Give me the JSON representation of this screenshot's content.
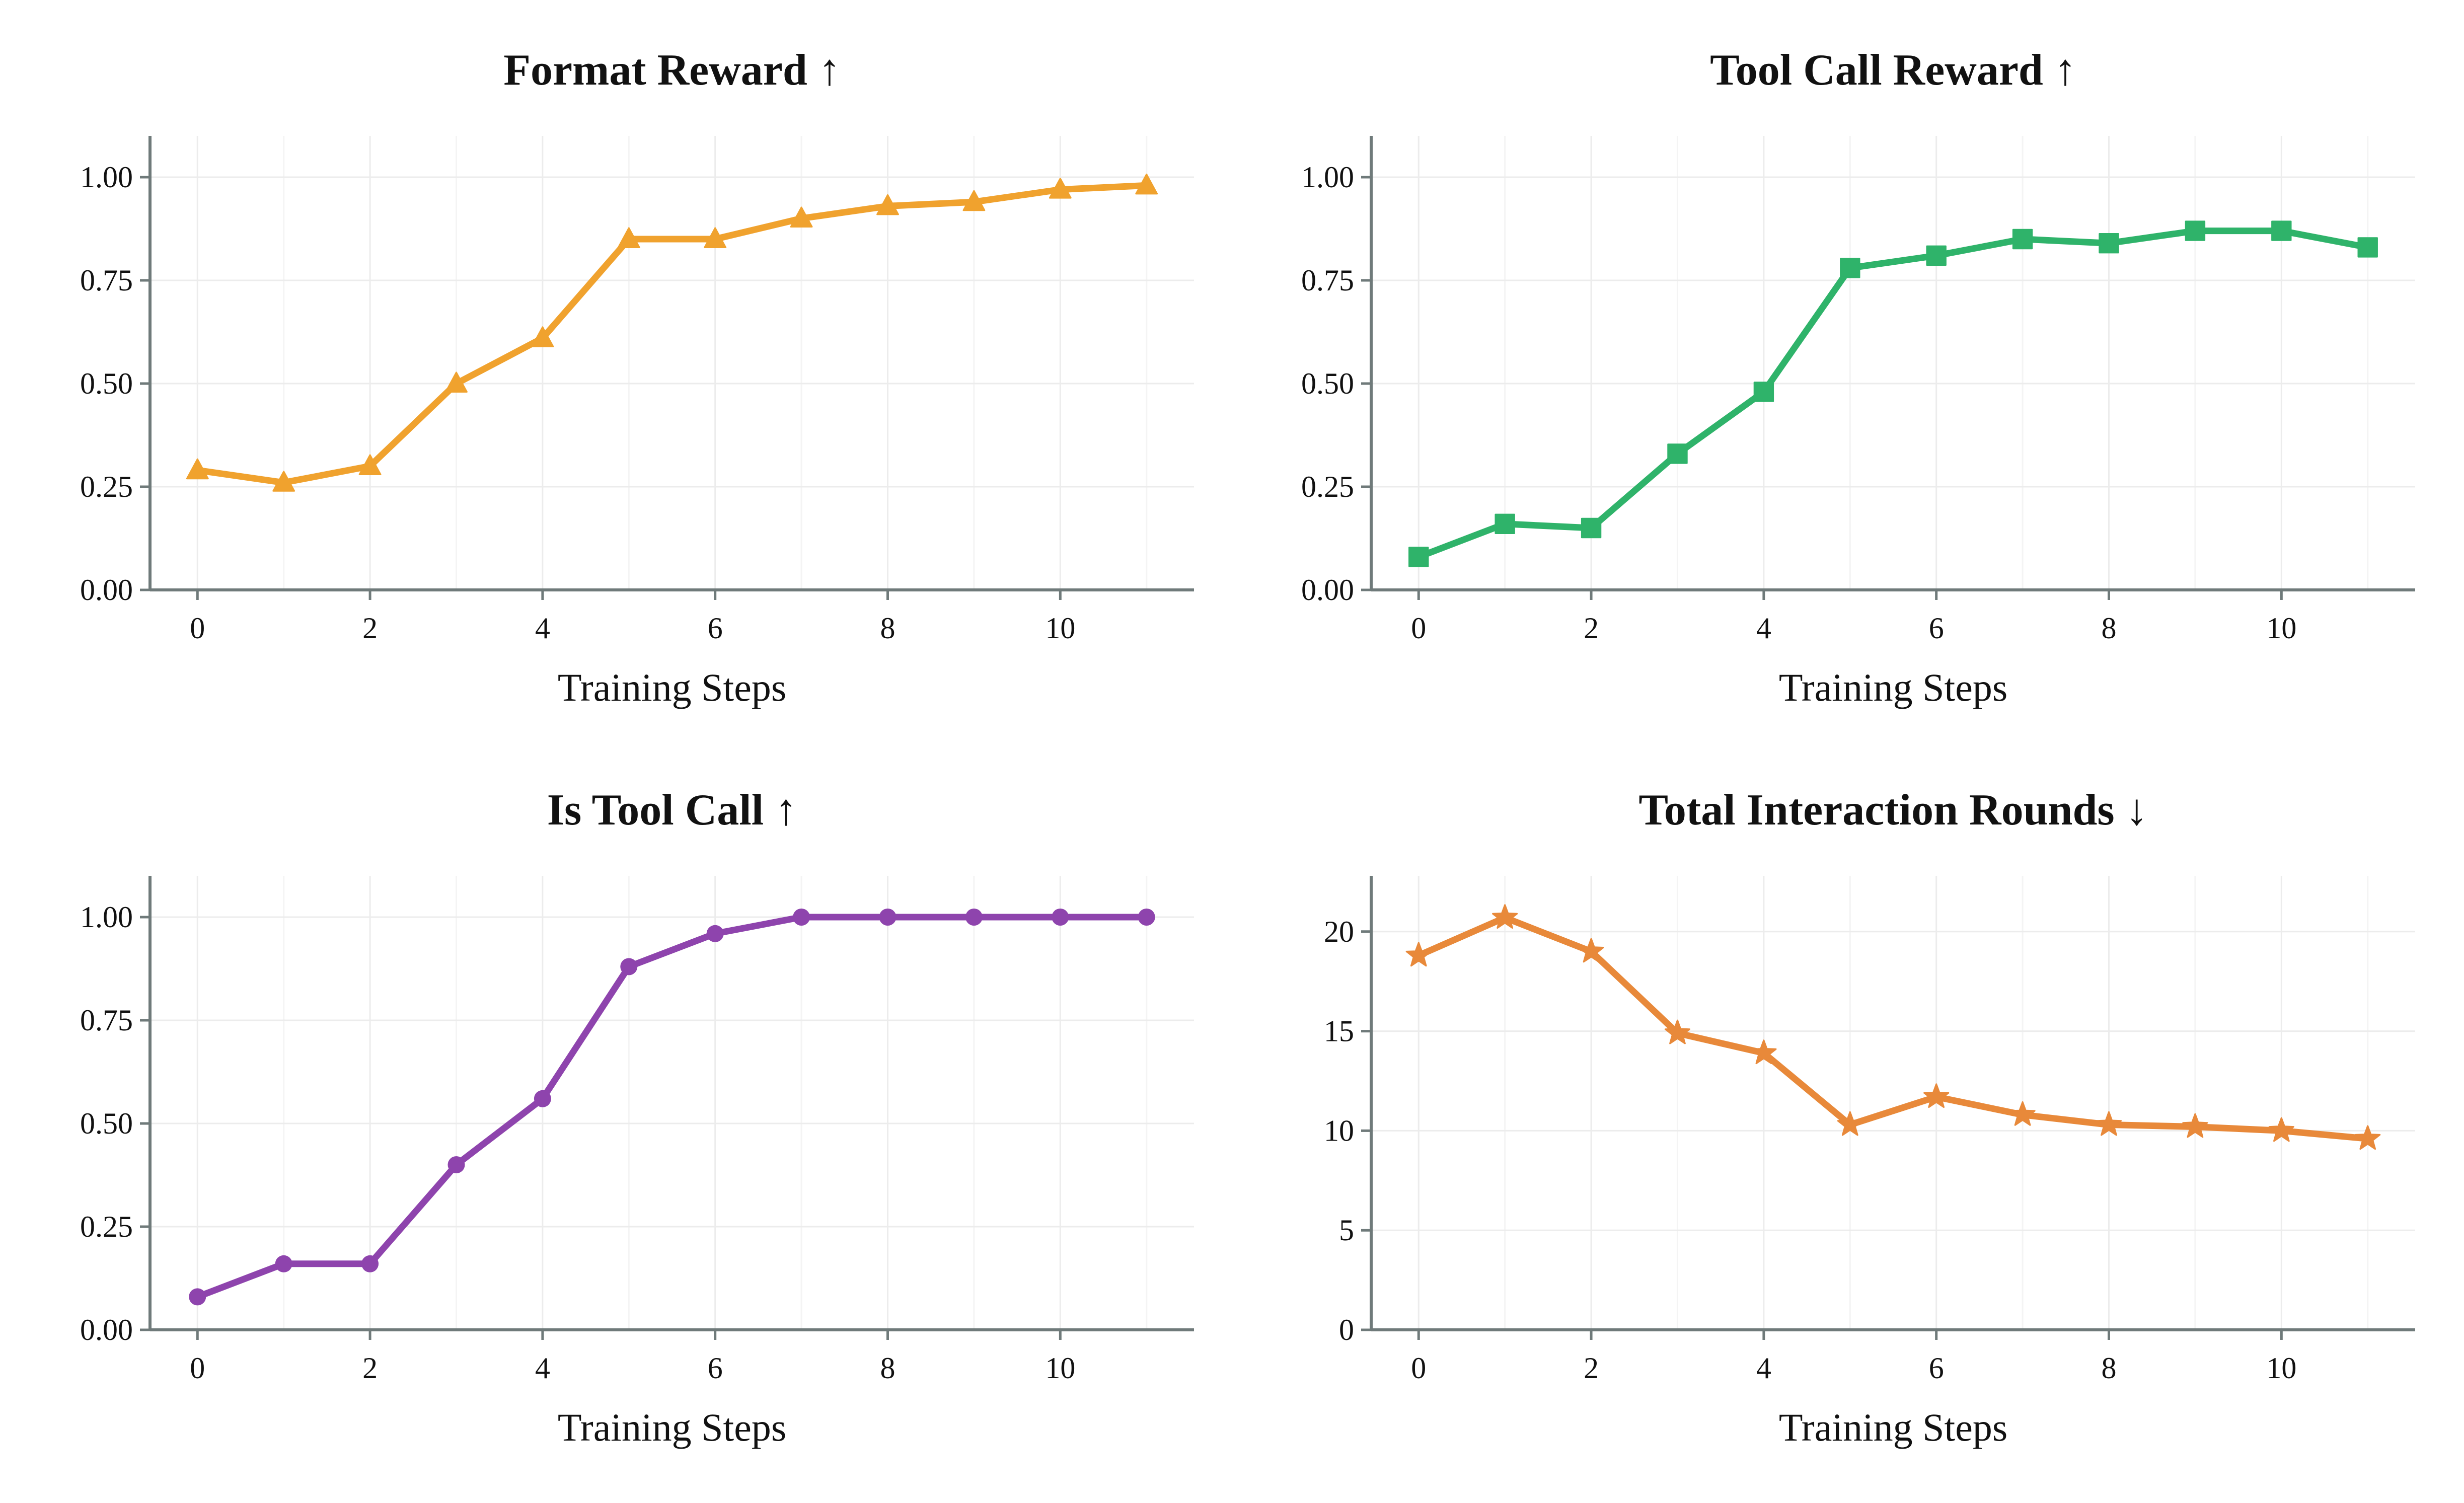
{
  "figure": {
    "xlabel": "Training Steps"
  },
  "chart_data": [
    {
      "type": "line",
      "title": "Format Reward ↑",
      "xlabel": "Training Steps",
      "ylabel": "",
      "x": [
        0,
        1,
        2,
        3,
        4,
        5,
        6,
        7,
        8,
        9,
        10,
        11
      ],
      "series": [
        {
          "name": "Format Reward",
          "values": [
            0.29,
            0.26,
            0.3,
            0.5,
            0.61,
            0.85,
            0.85,
            0.9,
            0.93,
            0.94,
            0.97,
            0.98
          ],
          "color": "#f0a22e",
          "marker": "triangle"
        }
      ],
      "xlim": [
        -0.55,
        11.55
      ],
      "ylim": [
        0,
        1.1
      ],
      "xticks": [
        0,
        2,
        4,
        6,
        8,
        10
      ],
      "yticks": [
        0,
        0.25,
        0.5,
        0.75,
        1.0
      ],
      "ytick_labels": [
        "0.00",
        "0.25",
        "0.50",
        "0.75",
        "1.00"
      ],
      "grid": true
    },
    {
      "type": "line",
      "title": "Tool Call Reward ↑",
      "xlabel": "Training Steps",
      "ylabel": "",
      "x": [
        0,
        1,
        2,
        3,
        4,
        5,
        6,
        7,
        8,
        9,
        10,
        11
      ],
      "series": [
        {
          "name": "Tool Call Reward",
          "values": [
            0.08,
            0.16,
            0.15,
            0.33,
            0.48,
            0.78,
            0.81,
            0.85,
            0.84,
            0.87,
            0.87,
            0.83
          ],
          "color": "#2fb36a",
          "marker": "square"
        }
      ],
      "xlim": [
        -0.55,
        11.55
      ],
      "ylim": [
        0,
        1.1
      ],
      "xticks": [
        0,
        2,
        4,
        6,
        8,
        10
      ],
      "yticks": [
        0,
        0.25,
        0.5,
        0.75,
        1.0
      ],
      "ytick_labels": [
        "0.00",
        "0.25",
        "0.50",
        "0.75",
        "1.00"
      ],
      "grid": true
    },
    {
      "type": "line",
      "title": "Is Tool Call ↑",
      "xlabel": "Training Steps",
      "ylabel": "",
      "x": [
        0,
        1,
        2,
        3,
        4,
        5,
        6,
        7,
        8,
        9,
        10,
        11
      ],
      "series": [
        {
          "name": "Is Tool Call",
          "values": [
            0.08,
            0.16,
            0.16,
            0.4,
            0.56,
            0.88,
            0.96,
            1.0,
            1.0,
            1.0,
            1.0,
            1.0
          ],
          "color": "#8e44ad",
          "marker": "circle"
        }
      ],
      "xlim": [
        -0.55,
        11.55
      ],
      "ylim": [
        0,
        1.1
      ],
      "xticks": [
        0,
        2,
        4,
        6,
        8,
        10
      ],
      "yticks": [
        0,
        0.25,
        0.5,
        0.75,
        1.0
      ],
      "ytick_labels": [
        "0.00",
        "0.25",
        "0.50",
        "0.75",
        "1.00"
      ],
      "grid": true
    },
    {
      "type": "line",
      "title": "Total Interaction Rounds ↓",
      "xlabel": "Training Steps",
      "ylabel": "",
      "x": [
        0,
        1,
        2,
        3,
        4,
        5,
        6,
        7,
        8,
        9,
        10,
        11
      ],
      "series": [
        {
          "name": "Total Interaction Rounds",
          "values": [
            18.8,
            20.7,
            19.0,
            14.9,
            13.9,
            10.3,
            11.7,
            10.8,
            10.3,
            10.2,
            10.0,
            9.6
          ],
          "color": "#e8893a",
          "marker": "star"
        }
      ],
      "xlim": [
        -0.55,
        11.55
      ],
      "ylim": [
        0,
        22.8
      ],
      "xticks": [
        0,
        2,
        4,
        6,
        8,
        10
      ],
      "yticks": [
        0,
        5,
        10,
        15,
        20
      ],
      "ytick_labels": [
        "0",
        "5",
        "10",
        "15",
        "20"
      ],
      "grid": true
    }
  ]
}
